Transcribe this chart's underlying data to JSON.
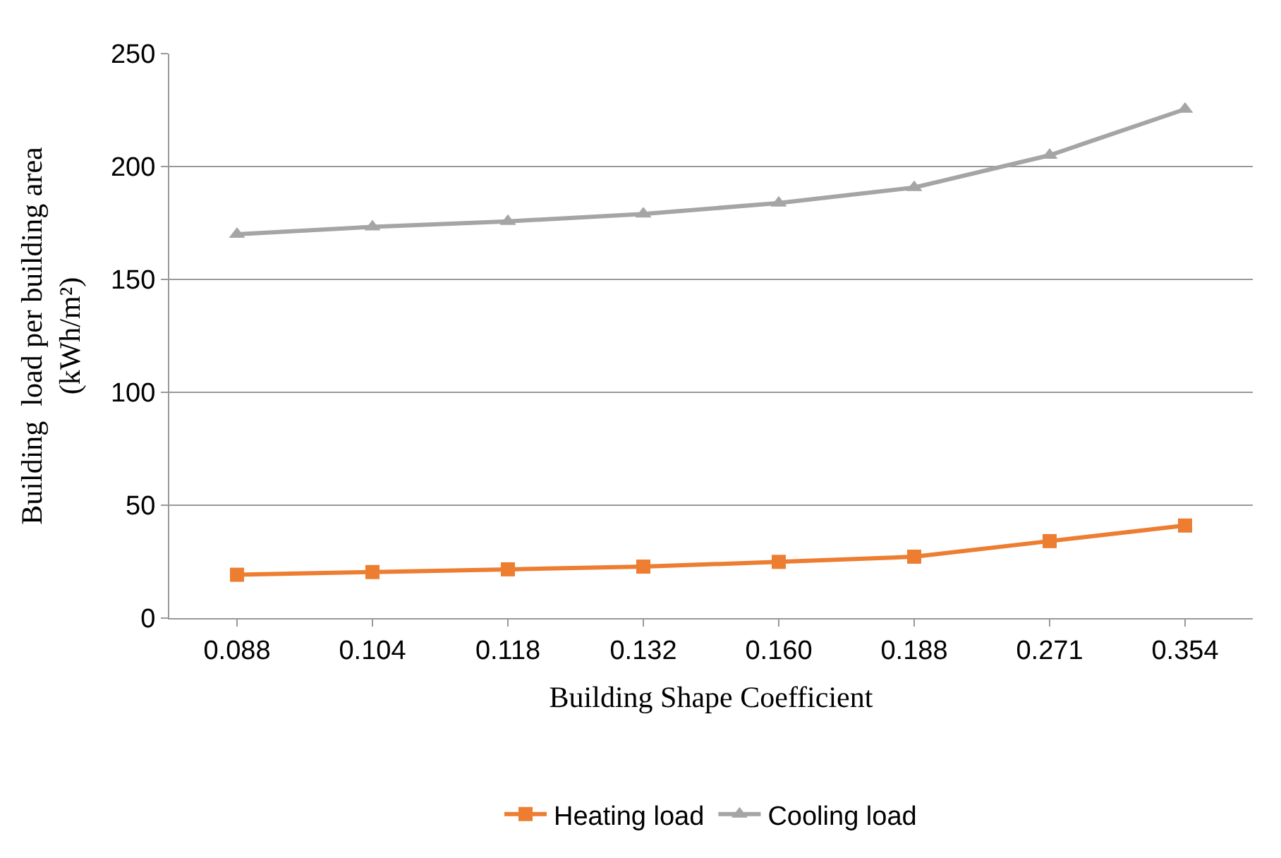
{
  "chart_data": {
    "type": "line",
    "xlabel": "Building Shape Coefficient",
    "ylabel": "Building  load per building area (kWh/m²)",
    "categories": [
      "0.088",
      "0.104",
      "0.118",
      "0.132",
      "0.160",
      "0.188",
      "0.271",
      "0.354"
    ],
    "series": [
      {
        "name": "Heating load",
        "color": "#ed7d31",
        "marker": "square",
        "values": [
          19.2,
          20.4,
          21.6,
          22.8,
          24.9,
          27.2,
          34.1,
          41.0
        ]
      },
      {
        "name": "Cooling load",
        "color": "#a5a5a5",
        "marker": "triangle",
        "values": [
          170,
          173.3,
          175.7,
          179,
          183.8,
          190.7,
          205,
          225.4
        ]
      }
    ],
    "ylim": [
      0,
      250
    ],
    "yticks": [
      0,
      50,
      100,
      150,
      200,
      250
    ],
    "grid": "y",
    "legend": "bottom",
    "line_style": "solid"
  }
}
